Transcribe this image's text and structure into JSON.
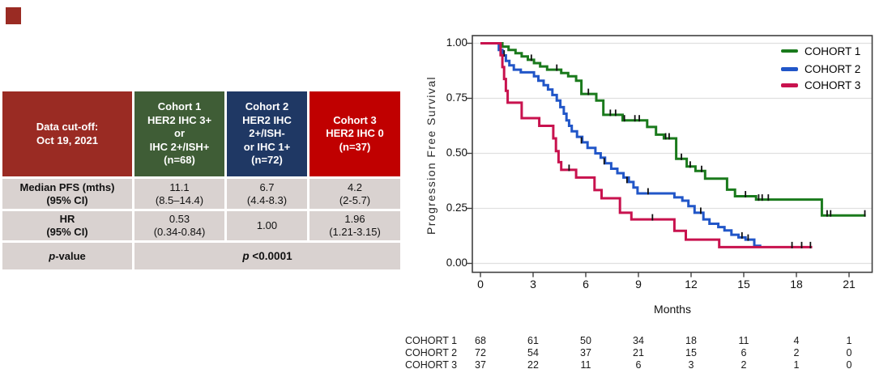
{
  "decor": {
    "corner_square_color": "#9a2b23"
  },
  "table": {
    "header": [
      {
        "text": "Data cut-off:\nOct 19, 2021",
        "bg": "#9a2b23"
      },
      {
        "text": "Cohort 1\nHER2 IHC 3+\nor\nIHC 2+/ISH+\n(n=68)",
        "bg": "#3f5d36"
      },
      {
        "text": "Cohort 2\nHER2 IHC\n2+/ISH-\nor IHC 1+\n(n=72)",
        "bg": "#1f3864"
      },
      {
        "text": "Cohort 3\nHER2 IHC 0\n(n=37)",
        "bg": "#c00000"
      }
    ],
    "rows": [
      {
        "label": "Median PFS (mths)\n(95% CI)",
        "values": [
          "11.1\n(8.5–14.4)",
          "6.7\n(4.4-8.3)",
          "4.2\n(2-5.7)"
        ]
      },
      {
        "label": "HR\n(95% CI)",
        "values": [
          "0.53\n(0.34-0.84)",
          "1.00",
          "1.96\n(1.21-3.15)"
        ]
      }
    ],
    "pvalue_row": {
      "label_prefix": "p",
      "label_rest": "-value",
      "value_prefix": "p",
      "value_rest": " <0.0001"
    },
    "body_bg": "#d9d2d0"
  },
  "chart_data": {
    "type": "line",
    "subtype": "kaplan-meier-step",
    "title": "",
    "xlabel": "Months",
    "ylabel": "Progression Free Survival",
    "xlim": [
      0,
      22.3
    ],
    "ylim": [
      0,
      1.0
    ],
    "grid": "horizontal",
    "legend_position": "top-right",
    "xticks": [
      0,
      3,
      6,
      9,
      12,
      15,
      18,
      21
    ],
    "yticks": [
      {
        "label": "1.00",
        "s": 1.0
      },
      {
        "label": "0.75",
        "s": 0.75
      },
      {
        "label": "0.50",
        "s": 0.5
      },
      {
        "label": "0.25",
        "s": 0.25
      },
      {
        "label": "0.00",
        "s": 0.0
      }
    ],
    "series": [
      {
        "name": "COHORT 1",
        "color": "#1a7a1c",
        "steps": [
          [
            0,
            1.0
          ],
          [
            1.25,
            0.985
          ],
          [
            1.6,
            0.97
          ],
          [
            2.0,
            0.955
          ],
          [
            2.35,
            0.94
          ],
          [
            2.7,
            0.925
          ],
          [
            3.05,
            0.91
          ],
          [
            3.4,
            0.895
          ],
          [
            3.8,
            0.88
          ],
          [
            4.6,
            0.865
          ],
          [
            5.0,
            0.85
          ],
          [
            5.45,
            0.83
          ],
          [
            5.75,
            0.77
          ],
          [
            6.6,
            0.74
          ],
          [
            7.0,
            0.675
          ],
          [
            8.1,
            0.65
          ],
          [
            9.5,
            0.62
          ],
          [
            10.0,
            0.585
          ],
          [
            10.45,
            0.568
          ],
          [
            11.15,
            0.475
          ],
          [
            11.75,
            0.44
          ],
          [
            12.25,
            0.42
          ],
          [
            12.8,
            0.385
          ],
          [
            14.05,
            0.335
          ],
          [
            14.5,
            0.305
          ],
          [
            15.7,
            0.29
          ],
          [
            19.45,
            0.218
          ],
          [
            21.95,
            0.218
          ]
        ],
        "censors": [
          [
            2.9,
            0.925
          ],
          [
            4.35,
            0.88
          ],
          [
            6.15,
            0.77
          ],
          [
            7.4,
            0.675
          ],
          [
            7.7,
            0.675
          ],
          [
            8.2,
            0.65
          ],
          [
            8.8,
            0.65
          ],
          [
            9.05,
            0.65
          ],
          [
            10.55,
            0.568
          ],
          [
            10.75,
            0.568
          ],
          [
            11.45,
            0.475
          ],
          [
            11.95,
            0.44
          ],
          [
            12.6,
            0.42
          ],
          [
            15.1,
            0.305
          ],
          [
            15.85,
            0.29
          ],
          [
            16.05,
            0.29
          ],
          [
            16.4,
            0.29
          ],
          [
            19.75,
            0.218
          ],
          [
            19.95,
            0.218
          ],
          [
            21.9,
            0.218
          ]
        ]
      },
      {
        "name": "COHORT 2",
        "color": "#2156c8",
        "steps": [
          [
            0,
            1.0
          ],
          [
            1.05,
            0.97
          ],
          [
            1.25,
            0.945
          ],
          [
            1.45,
            0.92
          ],
          [
            1.65,
            0.9
          ],
          [
            1.9,
            0.88
          ],
          [
            2.3,
            0.868
          ],
          [
            3.05,
            0.85
          ],
          [
            3.3,
            0.83
          ],
          [
            3.6,
            0.81
          ],
          [
            3.85,
            0.79
          ],
          [
            4.1,
            0.765
          ],
          [
            4.35,
            0.74
          ],
          [
            4.55,
            0.71
          ],
          [
            4.75,
            0.68
          ],
          [
            4.9,
            0.65
          ],
          [
            5.05,
            0.625
          ],
          [
            5.2,
            0.6
          ],
          [
            5.5,
            0.575
          ],
          [
            5.8,
            0.55
          ],
          [
            6.1,
            0.525
          ],
          [
            6.55,
            0.5
          ],
          [
            6.85,
            0.48
          ],
          [
            7.1,
            0.455
          ],
          [
            7.45,
            0.43
          ],
          [
            7.8,
            0.41
          ],
          [
            8.15,
            0.39
          ],
          [
            8.45,
            0.37
          ],
          [
            8.72,
            0.345
          ],
          [
            8.95,
            0.318
          ],
          [
            11.05,
            0.3
          ],
          [
            11.5,
            0.285
          ],
          [
            11.85,
            0.26
          ],
          [
            12.2,
            0.23
          ],
          [
            12.7,
            0.2
          ],
          [
            13.05,
            0.18
          ],
          [
            13.55,
            0.165
          ],
          [
            13.9,
            0.15
          ],
          [
            14.3,
            0.13
          ],
          [
            14.7,
            0.118
          ],
          [
            15.1,
            0.108
          ],
          [
            15.6,
            0.08
          ],
          [
            16.0,
            0.08
          ]
        ],
        "censors": [
          [
            1.35,
            0.945
          ],
          [
            5.75,
            0.55
          ],
          [
            7.05,
            0.455
          ],
          [
            8.35,
            0.37
          ],
          [
            9.55,
            0.318
          ],
          [
            12.55,
            0.23
          ],
          [
            14.9,
            0.118
          ],
          [
            15.25,
            0.108
          ]
        ]
      },
      {
        "name": "COHORT 3",
        "color": "#c8124e",
        "steps": [
          [
            0,
            1.0
          ],
          [
            1.15,
            0.946
          ],
          [
            1.25,
            0.892
          ],
          [
            1.35,
            0.838
          ],
          [
            1.45,
            0.784
          ],
          [
            1.55,
            0.73
          ],
          [
            2.35,
            0.66
          ],
          [
            3.35,
            0.625
          ],
          [
            4.15,
            0.568
          ],
          [
            4.3,
            0.51
          ],
          [
            4.45,
            0.46
          ],
          [
            4.6,
            0.425
          ],
          [
            5.45,
            0.39
          ],
          [
            6.5,
            0.333
          ],
          [
            6.9,
            0.296
          ],
          [
            7.95,
            0.23
          ],
          [
            8.6,
            0.2
          ],
          [
            11.05,
            0.148
          ],
          [
            11.7,
            0.108
          ],
          [
            13.6,
            0.074
          ],
          [
            18.9,
            0.074
          ]
        ],
        "censors": [
          [
            5.05,
            0.425
          ],
          [
            9.8,
            0.2
          ],
          [
            17.75,
            0.074
          ],
          [
            18.3,
            0.074
          ],
          [
            18.8,
            0.074
          ]
        ]
      }
    ],
    "at_risk_months": [
      0,
      3,
      6,
      9,
      12,
      15,
      18,
      21
    ],
    "at_risk": [
      {
        "name": "COHORT 1",
        "counts": [
          68,
          61,
          50,
          34,
          18,
          11,
          4,
          1
        ]
      },
      {
        "name": "COHORT 2",
        "counts": [
          72,
          54,
          37,
          21,
          15,
          6,
          2,
          0
        ]
      },
      {
        "name": "COHORT 3",
        "counts": [
          37,
          22,
          11,
          6,
          3,
          2,
          1,
          0
        ]
      }
    ]
  }
}
